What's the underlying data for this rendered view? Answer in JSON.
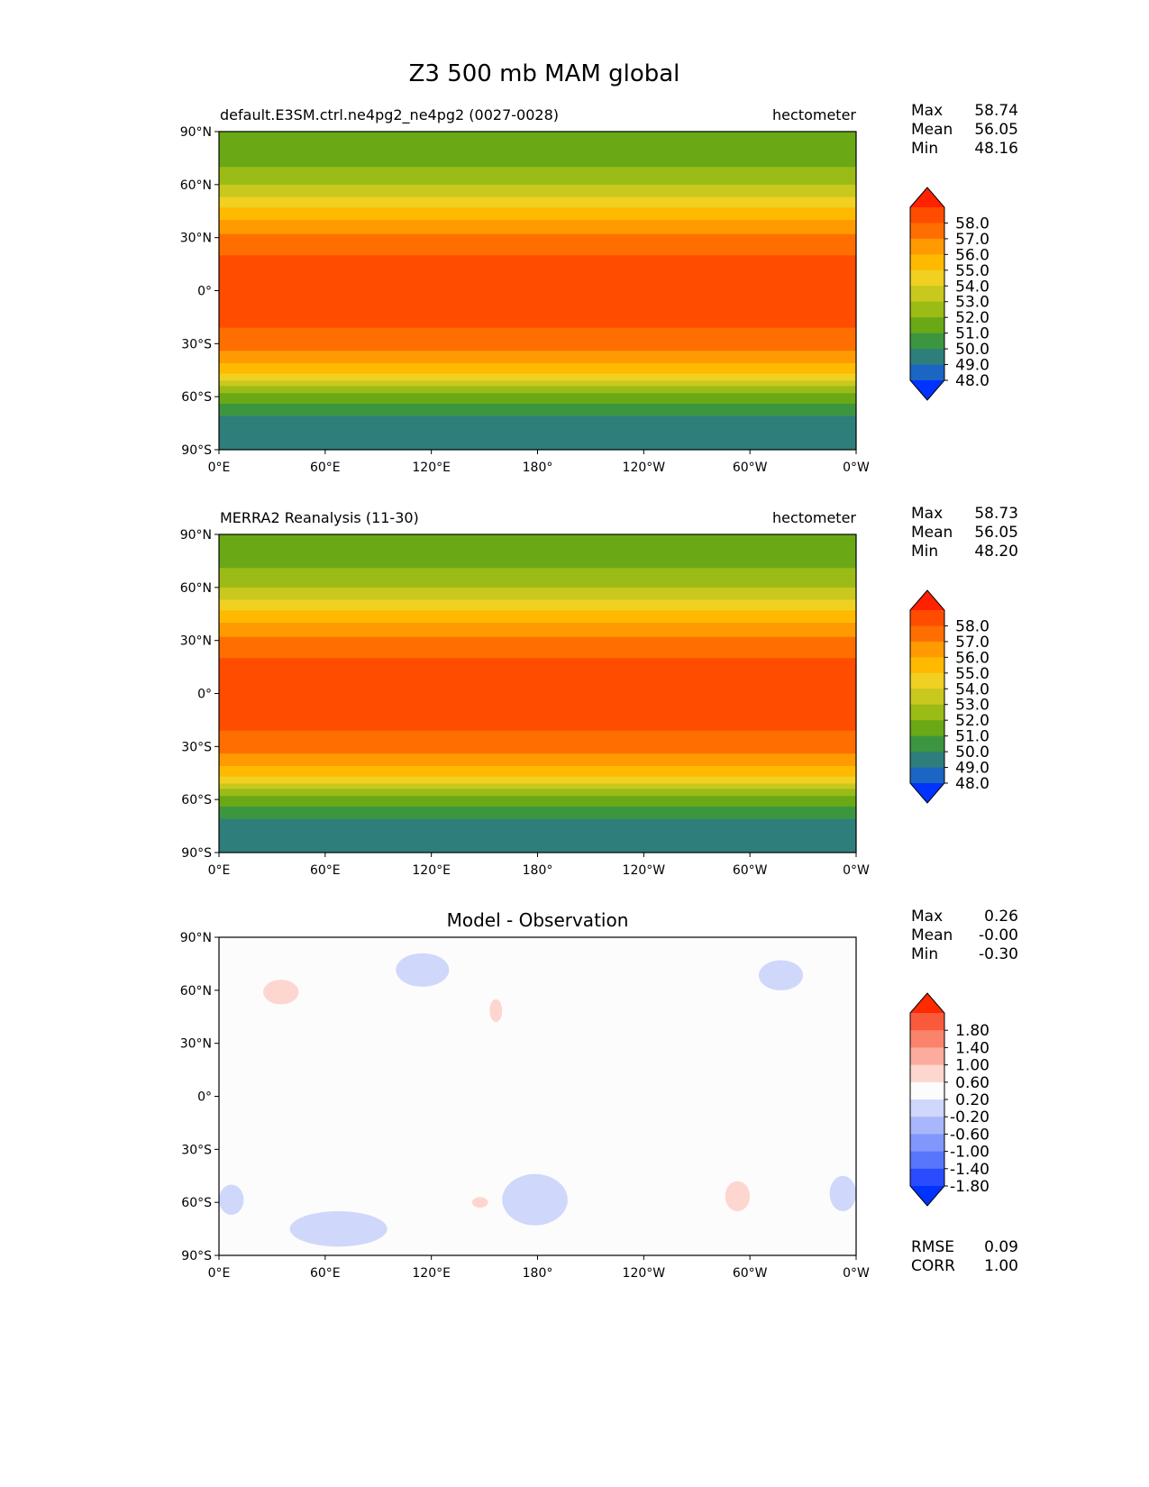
{
  "figure": {
    "title": "Z3 500 mb MAM global"
  },
  "axes": {
    "lat_ticks": [
      "90°N",
      "60°N",
      "30°N",
      "0°",
      "30°S",
      "60°S",
      "90°S"
    ],
    "lon_ticks": [
      "0°E",
      "60°E",
      "120°E",
      "180°",
      "120°W",
      "60°W",
      "0°W"
    ]
  },
  "panels": [
    {
      "id": "model",
      "left_title": "default.E3SM.ctrl.ne4pg2_ne4pg2 (0027-0028)",
      "right_title": "hectometer",
      "center_title": "",
      "stats": {
        "labels": [
          "Max",
          "Mean",
          "Min"
        ],
        "values": [
          "58.74",
          "56.05",
          "48.16"
        ]
      },
      "colorbar": {
        "labels": [
          "58.0",
          "57.0",
          "56.0",
          "55.0",
          "54.0",
          "53.0",
          "52.0",
          "51.0",
          "50.0",
          "49.0",
          "48.0"
        ],
        "colors": [
          "#ff2200",
          "#ff4d00",
          "#ff6e00",
          "#ff9a00",
          "#ffba00",
          "#f0d020",
          "#c8c81e",
          "#9bbb16",
          "#6aa816",
          "#3c9640",
          "#2e7f7b",
          "#1a66c2",
          "#0033ff"
        ]
      }
    },
    {
      "id": "obs",
      "left_title": "MERRA2 Reanalysis (11-30)",
      "right_title": "hectometer",
      "center_title": "",
      "stats": {
        "labels": [
          "Max",
          "Mean",
          "Min"
        ],
        "values": [
          "58.73",
          "56.05",
          "48.20"
        ]
      },
      "colorbar": {
        "labels": [
          "58.0",
          "57.0",
          "56.0",
          "55.0",
          "54.0",
          "53.0",
          "52.0",
          "51.0",
          "50.0",
          "49.0",
          "48.0"
        ],
        "colors": [
          "#ff2200",
          "#ff4d00",
          "#ff6e00",
          "#ff9a00",
          "#ffba00",
          "#f0d020",
          "#c8c81e",
          "#9bbb16",
          "#6aa816",
          "#3c9640",
          "#2e7f7b",
          "#1a66c2",
          "#0033ff"
        ]
      }
    },
    {
      "id": "diff",
      "left_title": "",
      "right_title": "",
      "center_title": "Model - Observation",
      "stats": {
        "labels": [
          "Max",
          "Mean",
          "Min"
        ],
        "values": [
          "0.26",
          "-0.00",
          "-0.30"
        ]
      },
      "colorbar": {
        "labels": [
          "1.80",
          "1.40",
          "1.00",
          "0.60",
          "0.20",
          "-0.20",
          "-0.60",
          "-1.00",
          "-1.40",
          "-1.80"
        ],
        "colors": [
          "#ff2a00",
          "#fa5a3c",
          "#fb836b",
          "#fbac9c",
          "#fdd6cf",
          "#fcfcfc",
          "#cfd7fb",
          "#a8b6fb",
          "#8297fb",
          "#5876fc",
          "#2a4cff",
          "#0033ff"
        ]
      },
      "metrics": {
        "labels": [
          "RMSE",
          "CORR"
        ],
        "values": [
          "0.09",
          "1.00"
        ]
      }
    }
  ],
  "chart_data": [
    {
      "type": "heatmap",
      "name": "Z3 500 mb MAM",
      "subtitle": "default.E3SM.ctrl.ne4pg2_ne4pg2 (0027-0028)",
      "units": "hectometer",
      "x": {
        "range": [
          0,
          360
        ],
        "ticks": [
          "0°E",
          "60°E",
          "120°E",
          "180°",
          "120°W",
          "60°W",
          "0°W"
        ]
      },
      "y": {
        "range": [
          -90,
          90
        ],
        "ticks": [
          "90°N",
          "60°N",
          "30°N",
          "0°",
          "30°S",
          "60°S",
          "90°S"
        ]
      },
      "levels": [
        48,
        49,
        50,
        51,
        52,
        53,
        54,
        55,
        56,
        57,
        58
      ],
      "zonal_profile": {
        "lat": [
          90,
          75,
          60,
          45,
          30,
          15,
          0,
          -15,
          -30,
          -45,
          -60,
          -75,
          -90
        ],
        "value": [
          51,
          51.5,
          53,
          55.3,
          57.3,
          58.3,
          58.5,
          58.3,
          57.6,
          55.5,
          51.5,
          49.5,
          49
        ]
      },
      "max": 58.74,
      "mean": 56.05,
      "min": 48.16
    },
    {
      "type": "heatmap",
      "name": "Z3 500 mb MAM",
      "subtitle": "MERRA2 Reanalysis (11-30)",
      "units": "hectometer",
      "x": {
        "range": [
          0,
          360
        ],
        "ticks": [
          "0°E",
          "60°E",
          "120°E",
          "180°",
          "120°W",
          "60°W",
          "0°W"
        ]
      },
      "y": {
        "range": [
          -90,
          90
        ],
        "ticks": [
          "90°N",
          "60°N",
          "30°N",
          "0°",
          "30°S",
          "60°S",
          "90°S"
        ]
      },
      "levels": [
        48,
        49,
        50,
        51,
        52,
        53,
        54,
        55,
        56,
        57,
        58
      ],
      "zonal_profile": {
        "lat": [
          90,
          75,
          60,
          45,
          30,
          15,
          0,
          -15,
          -30,
          -45,
          -60,
          -75,
          -90
        ],
        "value": [
          51.2,
          51.6,
          53,
          55.3,
          57.3,
          58.3,
          58.5,
          58.3,
          57.6,
          55.5,
          51.5,
          49.5,
          49
        ]
      },
      "max": 58.73,
      "mean": 56.05,
      "min": 48.2
    },
    {
      "type": "heatmap",
      "name": "Model - Observation",
      "x": {
        "range": [
          0,
          360
        ]
      },
      "y": {
        "range": [
          -90,
          90
        ]
      },
      "levels": [
        -1.8,
        -1.4,
        -1.0,
        -0.6,
        -0.2,
        0.2,
        0.6,
        1.0,
        1.4,
        1.8
      ],
      "anomalies": [
        {
          "sign": "positive",
          "lon_range": [
            25,
            45
          ],
          "lat_range": [
            52,
            66
          ]
        },
        {
          "sign": "positive",
          "lon_range": [
            153,
            160
          ],
          "lat_range": [
            42,
            55
          ]
        },
        {
          "sign": "positive",
          "lon_range": [
            286,
            300
          ],
          "lat_range": [
            -65,
            -48
          ]
        },
        {
          "sign": "positive",
          "lon_range": [
            143,
            152
          ],
          "lat_range": [
            -63,
            -57
          ]
        },
        {
          "sign": "negative",
          "lon_range": [
            100,
            130
          ],
          "lat_range": [
            62,
            81
          ]
        },
        {
          "sign": "negative",
          "lon_range": [
            305,
            330
          ],
          "lat_range": [
            60,
            77
          ]
        },
        {
          "sign": "negative",
          "lon_range": [
            40,
            95
          ],
          "lat_range": [
            -85,
            -65
          ]
        },
        {
          "sign": "negative",
          "lon_range": [
            160,
            197
          ],
          "lat_range": [
            -73,
            -44
          ]
        },
        {
          "sign": "negative",
          "lon_range": [
            0,
            14
          ],
          "lat_range": [
            -67,
            -50
          ]
        },
        {
          "sign": "negative",
          "lon_range": [
            345,
            360
          ],
          "lat_range": [
            -65,
            -45
          ]
        }
      ],
      "max": 0.26,
      "mean": -0.0,
      "min": -0.3,
      "rmse": 0.09,
      "corr": 1.0
    }
  ]
}
